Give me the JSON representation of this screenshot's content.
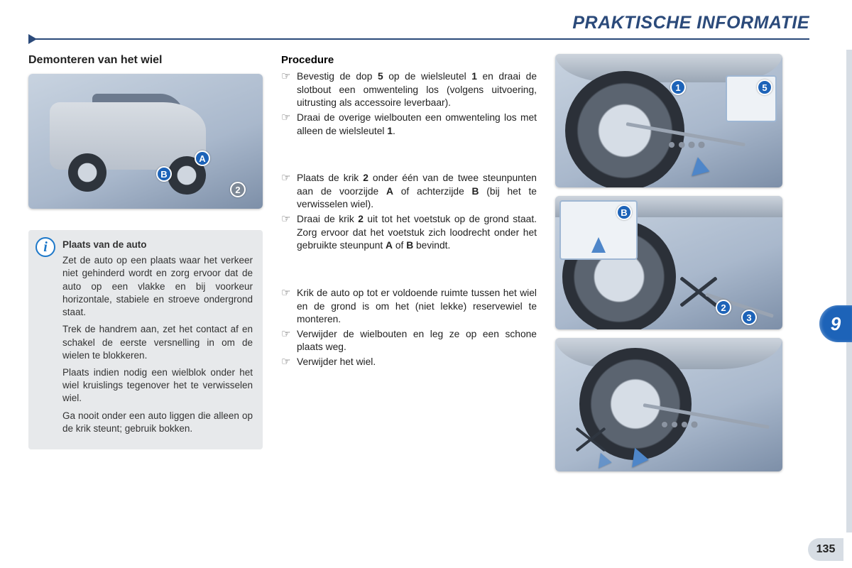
{
  "header": {
    "title": "PRAKTISCHE INFORMATIE"
  },
  "chapter_tab": "9",
  "page_number": "135",
  "left": {
    "title": "Demonteren van het wiel",
    "callouts": {
      "A": "A",
      "B": "B",
      "two": "2"
    },
    "info": {
      "title": "Plaats van de auto",
      "p1": "Zet de auto op een plaats waar het verkeer niet gehinderd wordt en zorg ervoor dat de auto op een vlakke en bij voorkeur horizontale, stabiele en stroeve ondergrond staat.",
      "p2": "Trek de handrem aan, zet het contact af en schakel de eerste versnelling in om de wielen te blokkeren.",
      "p3": "Plaats indien nodig een wielblok onder het wiel kruislings tegenover het te verwisselen wiel.",
      "p4": "Ga nooit onder een auto liggen die alleen op de krik steunt; gebruik bokken."
    }
  },
  "mid": {
    "title": "Procedure",
    "block1": [
      "Bevestig de dop <b>5</b> op de wielsleutel <b>1</b> en draai de slotbout een omwenteling los (volgens uitvoering, uitrusting als accessoire leverbaar).",
      "Draai de overige wielbouten een omwenteling los met alleen de wielsleutel <b>1</b>."
    ],
    "block2": [
      "Plaats de krik <b>2</b> onder één van de twee steunpunten aan de voorzijde <b>A</b> of achterzijde <b>B</b> (bij het te verwisselen wiel).",
      "Draai de krik <b>2</b> uit tot het voetstuk op de grond staat. Zorg ervoor dat het voetstuk zich loodrecht onder het gebruikte steunpunt <b>A</b> of <b>B</b> bevindt."
    ],
    "block3": [
      "Krik de auto op tot er voldoende ruimte tussen het wiel en de grond is om het (niet lekke) reservewiel te monteren.",
      "Verwijder de wielbouten en leg ze op een schone plaats weg.",
      "Verwijder het wiel."
    ]
  },
  "right": {
    "callouts": {
      "one": "1",
      "two": "2",
      "three": "3",
      "five": "5",
      "B": "B"
    }
  },
  "colors": {
    "brand_blue": "#2b4a7a",
    "callout_blue": "#1d63b8",
    "arrow_blue": "#4e86c9",
    "info_bg": "#e7e9eb",
    "strip": "#d7dde4"
  }
}
